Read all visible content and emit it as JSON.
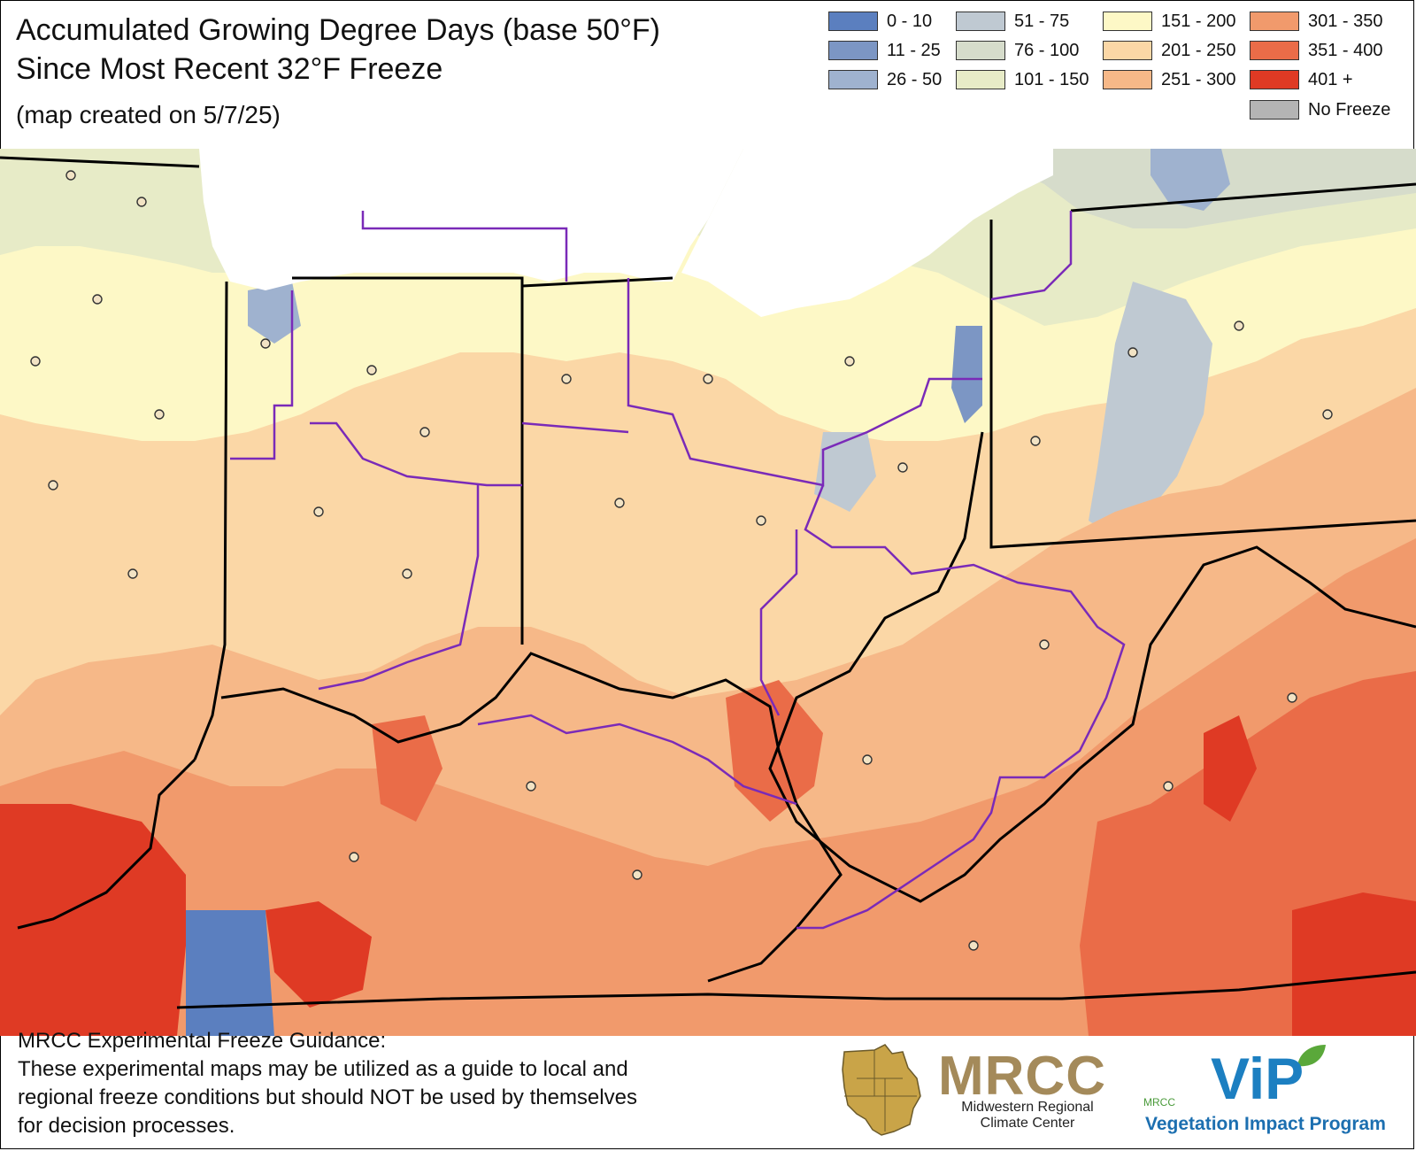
{
  "title": {
    "line1": "Accumulated Growing Degree Days (base 50°F)",
    "line2": "Since Most Recent 32°F Freeze",
    "created": "(map created on 5/7/25)"
  },
  "legend": {
    "items": [
      {
        "label": "0 - 10",
        "color": "#5b7fbf"
      },
      {
        "label": "11 - 25",
        "color": "#7c96c4"
      },
      {
        "label": "26 - 50",
        "color": "#9fb2cf"
      },
      {
        "label": "51 - 75",
        "color": "#bfc9d2"
      },
      {
        "label": "76 - 100",
        "color": "#d6dccb"
      },
      {
        "label": "101 - 150",
        "color": "#e7ebc7"
      },
      {
        "label": "151 - 200",
        "color": "#fdf8c6"
      },
      {
        "label": "201 - 250",
        "color": "#fbd7a6"
      },
      {
        "label": "251 - 300",
        "color": "#f6b888"
      },
      {
        "label": "301 - 350",
        "color": "#f19a6c"
      },
      {
        "label": "351 - 400",
        "color": "#ea6c48"
      },
      {
        "label": "401 +",
        "color": "#df3a24"
      },
      {
        "label": "No Freeze",
        "color": "#b4b4b4"
      }
    ]
  },
  "map": {
    "state_line_color": "#000000",
    "region_line_color": "#7a2ab8",
    "lake_color": "#ffffff"
  },
  "disclaimer": {
    "heading": "MRCC Experimental Freeze Guidance:",
    "line1": "These experimental maps may be utilized as a guide to local and",
    "line2": "regional freeze conditions but should NOT be used by themselves",
    "line3": "for decision processes."
  },
  "logos": {
    "mrcc_word": "MRCC",
    "mrcc_sub1": "Midwestern Regional",
    "mrcc_sub2": "Climate Center",
    "vip_word": "ViP",
    "vip_small": "MRCC",
    "vip_sub": "Vegetation Impact Program"
  }
}
